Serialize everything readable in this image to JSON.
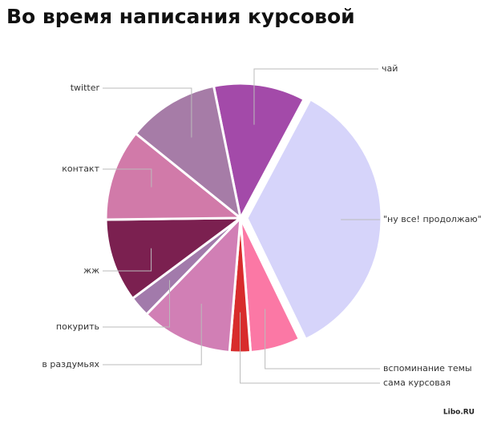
{
  "chart_data": {
    "type": "pie",
    "title": "Во время написания курсовой",
    "categories": [
      "чай",
      "\"ну все! продолжаю\"",
      "вспоминание темы",
      "сама курсовая",
      "в раздумьях",
      "покурить",
      "жж",
      "контакт",
      "twitter"
    ],
    "values": [
      11,
      35,
      6,
      2.5,
      11,
      2.5,
      10,
      11,
      11
    ],
    "colors": [
      "#a34aa9",
      "#d6d4fa",
      "#fb78a5",
      "#d82c2c",
      "#d17fb5",
      "#a27aab",
      "#7b2050",
      "#d17aa9",
      "#a67ca7"
    ],
    "credit": "Libo.RU"
  }
}
